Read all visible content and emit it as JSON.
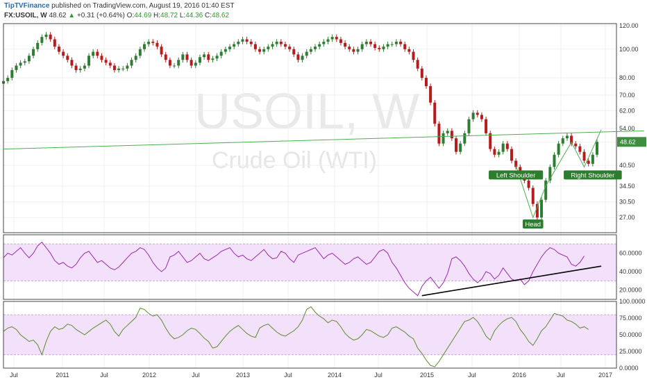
{
  "header": {
    "publisher": "TipTVFinance",
    "published_text": "published on TradingView.com, August 19, 2016 01:40 EST",
    "symbol": "FX:USOIL, W",
    "last": "48.62",
    "change_arrow": "▲",
    "change": "+0.31 (+0.64%)",
    "open_label": "O:",
    "open": "44.69",
    "high_label": "H:",
    "high": "48.72",
    "low_label": "L:",
    "low": "44.36",
    "close_label": "C:",
    "close": "48.62"
  },
  "watermark": {
    "symbol": "USOIL, W",
    "name": "Crude Oil (WTI)"
  },
  "colors": {
    "up_candle": "#2e7d32",
    "down_candle": "#b71c1c",
    "trendline": "#4caf50",
    "rsi_line": "#9c27b0",
    "osc_line": "#5b8c2a",
    "band_fill": "#f3e0fa",
    "annotation_bg": "#2e7d2e",
    "price_tag": "#3d8f3d"
  },
  "chart_data": [
    {
      "type": "candlestick",
      "title": "FX:USOIL, W",
      "y_scale": "log",
      "ylim": [
        24,
        122
      ],
      "y_ticks": [
        "120.00",
        "100.00",
        "80.00",
        "70.00",
        "62.00",
        "54.00",
        "48.50",
        "40.50",
        "34.50",
        "30.50",
        "27.00"
      ],
      "x_ticks": [
        "Jul",
        "2011",
        "Jul",
        "2012",
        "Jul",
        "2013",
        "Jul",
        "2014",
        "Jul",
        "2015",
        "Jul",
        "2016",
        "Jul",
        "2017"
      ],
      "last_price_label": "48.62",
      "closes": [
        78,
        80,
        85,
        88,
        90,
        91,
        95,
        100,
        105,
        110,
        112,
        108,
        102,
        98,
        95,
        92,
        88,
        85,
        86,
        88,
        95,
        98,
        95,
        92,
        90,
        88,
        85,
        86,
        86,
        88,
        92,
        95,
        100,
        104,
        106,
        105,
        102,
        96,
        92,
        88,
        88,
        92,
        96,
        92,
        88,
        90,
        94,
        96,
        92,
        93,
        95,
        98,
        100,
        102,
        104,
        106,
        108,
        106,
        104,
        100,
        98,
        100,
        102,
        104,
        106,
        104,
        102,
        100,
        96,
        92,
        95,
        98,
        100,
        102,
        104,
        106,
        108,
        110,
        108,
        105,
        102,
        100,
        98,
        100,
        104,
        106,
        104,
        101,
        100,
        102,
        104,
        104,
        106,
        104,
        100,
        98,
        92,
        86,
        80,
        75,
        66,
        56,
        48,
        52,
        53,
        50,
        45,
        48,
        52,
        58,
        61,
        60,
        58,
        52,
        46,
        44,
        45,
        48,
        46,
        42,
        40,
        38,
        36,
        34,
        30,
        27,
        31,
        36,
        40,
        44,
        48,
        50,
        51,
        48,
        47,
        45,
        42,
        41,
        44,
        48.62
      ],
      "patterns": [
        {
          "label": "Left Shoulder"
        },
        {
          "label": "Head"
        },
        {
          "label": "Right Shoulder"
        }
      ],
      "trendlines": [
        {
          "name": "neckline",
          "from": [
            0,
            46
          ],
          "to": [
            150,
            53
          ]
        },
        {
          "name": "pattern",
          "points": [
            [
              120,
              40.5
            ],
            [
              124,
              27.0
            ],
            [
              127,
              34.5
            ],
            [
              133,
              48.5
            ],
            [
              136,
              40.0
            ],
            [
              140,
              53.5
            ]
          ]
        }
      ]
    },
    {
      "type": "line",
      "title": "",
      "ylim": [
        10,
        80
      ],
      "y_ticks": [
        "60.0000",
        "40.0000",
        "20.0000"
      ],
      "band": [
        30,
        70
      ],
      "values": [
        55,
        60,
        58,
        62,
        66,
        60,
        55,
        60,
        68,
        72,
        66,
        60,
        52,
        48,
        50,
        46,
        44,
        48,
        55,
        60,
        62,
        56,
        50,
        52,
        48,
        44,
        42,
        45,
        50,
        55,
        60,
        62,
        66,
        64,
        58,
        50,
        44,
        40,
        44,
        56,
        58,
        62,
        56,
        50,
        52,
        56,
        60,
        54,
        52,
        55,
        58,
        62,
        64,
        66,
        60,
        56,
        58,
        54,
        52,
        56,
        60,
        64,
        58,
        54,
        55,
        62,
        60,
        54,
        50,
        58,
        60,
        62,
        64,
        66,
        60,
        54,
        58,
        60,
        56,
        52,
        48,
        50,
        54,
        56,
        52,
        48,
        50,
        56,
        62,
        64,
        60,
        50,
        44,
        36,
        28,
        22,
        18,
        14,
        24,
        30,
        34,
        28,
        22,
        28,
        38,
        54,
        56,
        52,
        46,
        38,
        32,
        28,
        32,
        40,
        38,
        32,
        36,
        44,
        38,
        32,
        30,
        32,
        26,
        30,
        40,
        48,
        56,
        62,
        66,
        64,
        60,
        58,
        56,
        48,
        46,
        50,
        57
      ],
      "trendline": {
        "from": [
          98,
          14
        ],
        "to": [
          140,
          46
        ]
      }
    },
    {
      "type": "line",
      "title": "",
      "ylim": [
        0,
        100
      ],
      "y_ticks": [
        "100.0000",
        "75.0000",
        "50.0000",
        "25.0000",
        "0.0000"
      ],
      "band": [
        20,
        80
      ],
      "values": [
        55,
        60,
        62,
        58,
        50,
        45,
        40,
        42,
        35,
        20,
        40,
        55,
        62,
        58,
        60,
        66,
        64,
        58,
        54,
        50,
        55,
        60,
        64,
        68,
        72,
        66,
        55,
        48,
        58,
        64,
        70,
        76,
        90,
        88,
        82,
        78,
        80,
        72,
        60,
        50,
        44,
        46,
        50,
        56,
        60,
        58,
        52,
        45,
        40,
        30,
        32,
        40,
        48,
        55,
        60,
        64,
        58,
        52,
        48,
        46,
        60,
        64,
        66,
        60,
        54,
        50,
        48,
        52,
        56,
        62,
        72,
        88,
        92,
        84,
        78,
        74,
        68,
        72,
        70,
        62,
        52,
        46,
        42,
        44,
        50,
        58,
        56,
        52,
        48,
        46,
        50,
        60,
        62,
        58,
        54,
        48,
        44,
        30,
        22,
        12,
        4,
        2,
        10,
        20,
        30,
        40,
        50,
        60,
        70,
        72,
        76,
        70,
        60,
        48,
        42,
        56,
        64,
        70,
        74,
        76,
        70,
        58,
        50,
        40,
        34,
        44,
        56,
        62,
        72,
        82,
        80,
        78,
        72,
        70,
        66,
        60,
        62,
        58
      ],
      "trendline": null
    }
  ]
}
